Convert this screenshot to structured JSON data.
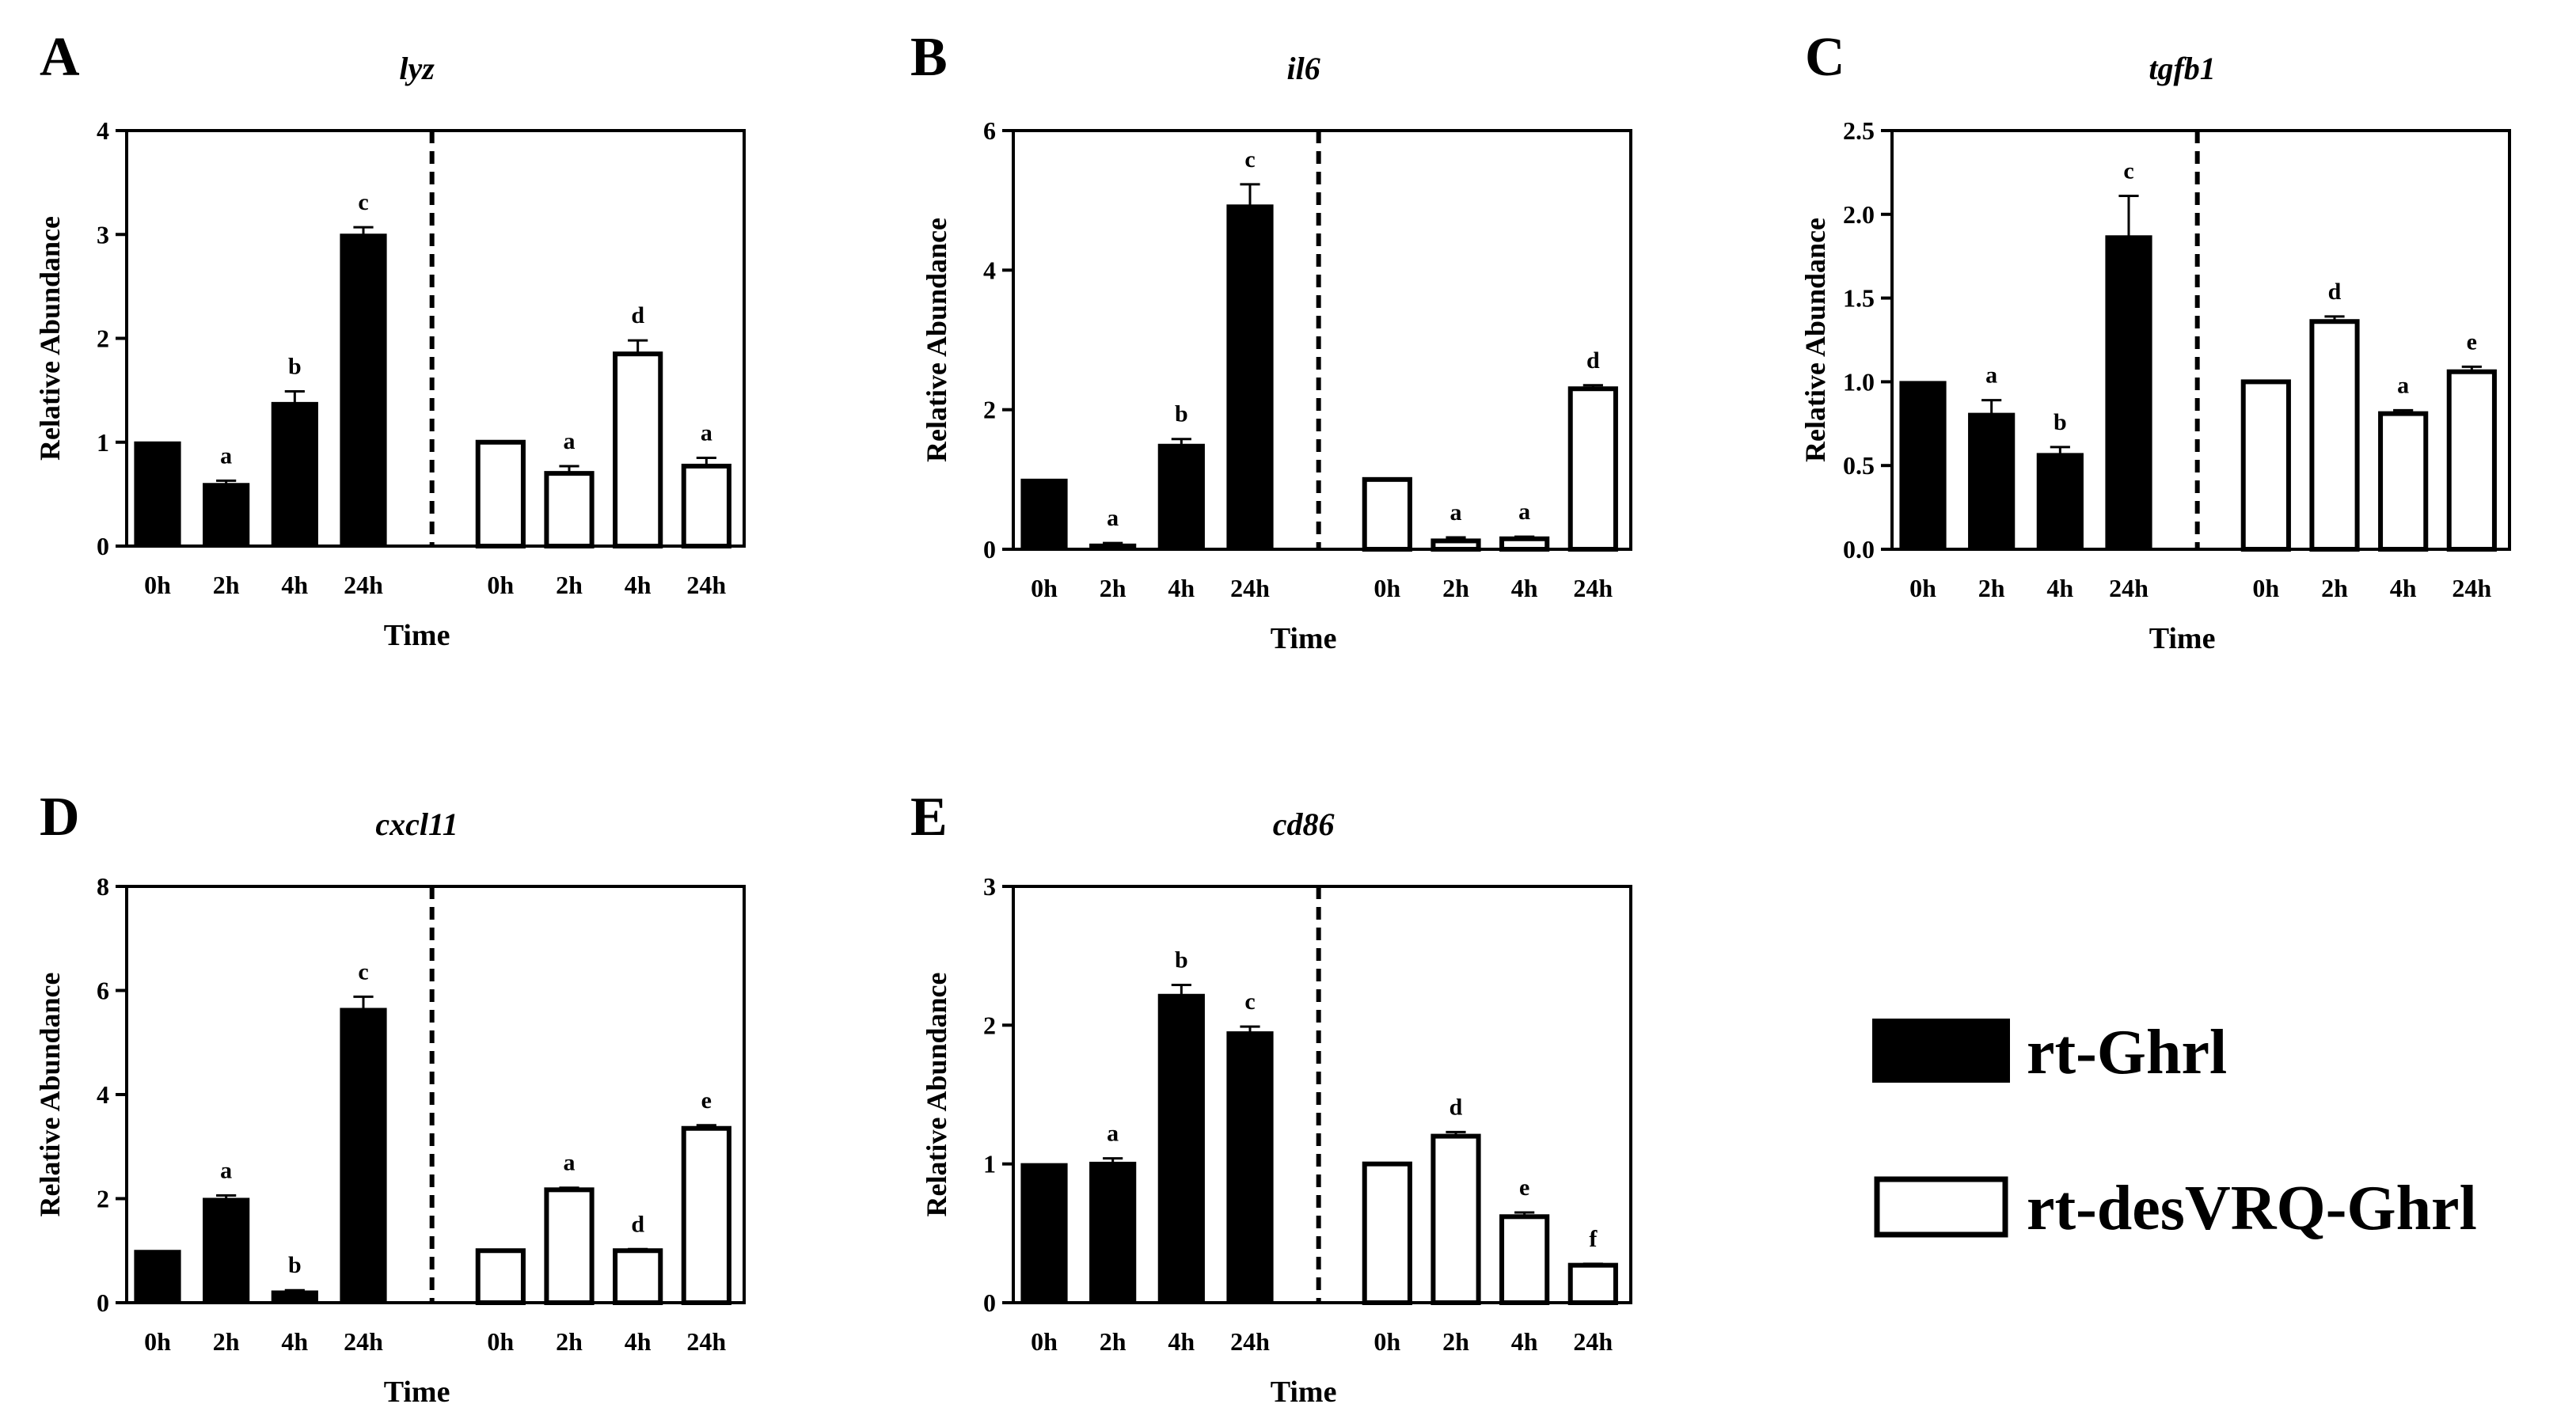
{
  "chart_data": [
    {
      "panel": "A",
      "type": "bar",
      "title": "lyz",
      "ylabel": "Relative Abundance",
      "xlabel": "Time",
      "ylim": [
        0,
        4
      ],
      "yticks": [
        "0",
        "1",
        "2",
        "3",
        "4"
      ],
      "categories": [
        "0h",
        "2h",
        "4h",
        "24h"
      ],
      "series": [
        {
          "name": "rt-Ghrl",
          "values": [
            1.0,
            0.6,
            1.38,
            3.0
          ],
          "errors": [
            0,
            0.03,
            0.11,
            0.07
          ],
          "letters": [
            "",
            "a",
            "b",
            "c"
          ]
        },
        {
          "name": "rt-desVRQ-Ghrl",
          "values": [
            1.0,
            0.7,
            1.85,
            0.77
          ],
          "errors": [
            0,
            0.07,
            0.13,
            0.08
          ],
          "letters": [
            "",
            "a",
            "d",
            "a"
          ]
        }
      ]
    },
    {
      "panel": "B",
      "type": "bar",
      "title": "il6",
      "ylabel": "Relative Abundance",
      "xlabel": "Time",
      "ylim": [
        0,
        6
      ],
      "yticks": [
        "0",
        "2",
        "4",
        "6"
      ],
      "categories": [
        "0h",
        "2h",
        "4h",
        "24h"
      ],
      "series": [
        {
          "name": "rt-Ghrl",
          "values": [
            1.0,
            0.07,
            1.5,
            4.93
          ],
          "errors": [
            0,
            0.02,
            0.08,
            0.3
          ],
          "letters": [
            "",
            "a",
            "b",
            "c"
          ]
        },
        {
          "name": "rt-desVRQ-Ghrl",
          "values": [
            1.0,
            0.12,
            0.15,
            2.3
          ],
          "errors": [
            0,
            0.05,
            0.03,
            0.05
          ],
          "letters": [
            "",
            "a",
            "a",
            "d"
          ]
        }
      ]
    },
    {
      "panel": "C",
      "type": "bar",
      "title": "tgfb1",
      "ylabel": "Relative Abundance",
      "xlabel": "Time",
      "ylim": [
        0,
        2.5
      ],
      "yticks": [
        "0.0",
        "0.5",
        "1.0",
        "1.5",
        "2.0",
        "2.5"
      ],
      "categories": [
        "0h",
        "2h",
        "4h",
        "24h"
      ],
      "series": [
        {
          "name": "rt-Ghrl",
          "values": [
            1.0,
            0.81,
            0.57,
            1.87
          ],
          "errors": [
            0,
            0.08,
            0.04,
            0.24
          ],
          "letters": [
            "",
            "a",
            "b",
            "c"
          ]
        },
        {
          "name": "rt-desVRQ-Ghrl",
          "values": [
            1.0,
            1.36,
            0.81,
            1.06
          ],
          "errors": [
            0,
            0.03,
            0.02,
            0.03
          ],
          "letters": [
            "",
            "d",
            "a",
            "e"
          ]
        }
      ]
    },
    {
      "panel": "D",
      "type": "bar",
      "title": "cxcl11",
      "ylabel": "Relative Abundance",
      "xlabel": "Time",
      "ylim": [
        0,
        8
      ],
      "yticks": [
        "0",
        "2",
        "4",
        "6",
        "8"
      ],
      "categories": [
        "0h",
        "2h",
        "4h",
        "24h"
      ],
      "series": [
        {
          "name": "rt-Ghrl",
          "values": [
            1.0,
            2.0,
            0.22,
            5.65
          ],
          "errors": [
            0,
            0.06,
            0.02,
            0.23
          ],
          "letters": [
            "",
            "a",
            "b",
            "c"
          ]
        },
        {
          "name": "rt-desVRQ-Ghrl",
          "values": [
            1.0,
            2.17,
            1.0,
            3.35
          ],
          "errors": [
            0,
            0.04,
            0.03,
            0.06
          ],
          "letters": [
            "",
            "a",
            "d",
            "e"
          ]
        }
      ]
    },
    {
      "panel": "E",
      "type": "bar",
      "title": "cd86",
      "ylabel": "Relative Abundance",
      "xlabel": "Time",
      "ylim": [
        0,
        3
      ],
      "yticks": [
        "0",
        "1",
        "2",
        "3"
      ],
      "categories": [
        "0h",
        "2h",
        "4h",
        "24h"
      ],
      "series": [
        {
          "name": "rt-Ghrl",
          "values": [
            1.0,
            1.01,
            2.22,
            1.95
          ],
          "errors": [
            0,
            0.03,
            0.07,
            0.04
          ],
          "letters": [
            "",
            "a",
            "b",
            "c"
          ]
        },
        {
          "name": "rt-desVRQ-Ghrl",
          "values": [
            1.0,
            1.2,
            0.62,
            0.27
          ],
          "errors": [
            0,
            0.03,
            0.03,
            0.01
          ],
          "letters": [
            "",
            "d",
            "e",
            "f"
          ]
        }
      ]
    }
  ],
  "legend": {
    "position": "bottom-right",
    "items": [
      {
        "label": "rt-Ghrl",
        "fill": "#000000"
      },
      {
        "label": "rt-desVRQ-Ghrl",
        "fill": "#ffffff"
      }
    ]
  },
  "colors": {
    "filled_bar": "#000000",
    "open_bar": "#ffffff",
    "stroke": "#000000"
  }
}
